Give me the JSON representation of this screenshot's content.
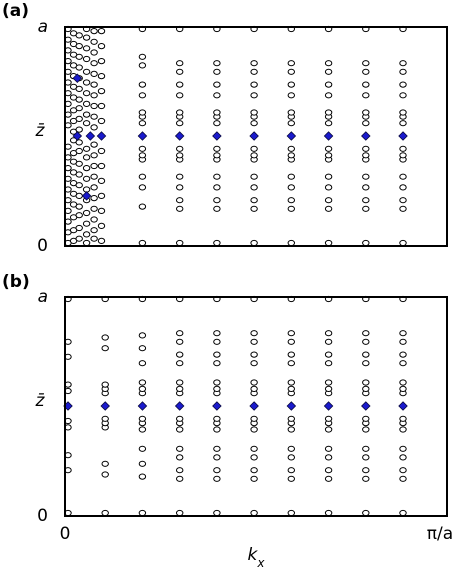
{
  "chart_data": [
    {
      "type": "scatter",
      "panel_label": "(a)",
      "ylabel": "z̄",
      "ylim": [
        0,
        1
      ],
      "xlim": [
        0,
        1
      ],
      "ytick_labels": {
        "bottom": "0",
        "top": "a"
      },
      "ytick_label_side": "left",
      "x_ticklabels": [],
      "open_marker_color": "#ffffff",
      "diamond_color": "#1a1acc",
      "open_columns": [
        {
          "x": 0.0,
          "y": [
            0.0,
            0.05,
            0.1,
            0.15,
            0.2,
            0.25,
            0.3,
            0.35,
            0.4,
            0.45,
            0.55,
            0.6,
            0.65,
            0.7,
            0.75,
            0.8,
            0.85,
            0.9,
            0.95,
            1.0
          ]
        },
        {
          "x": 0.015,
          "y": [
            0.01,
            0.06,
            0.12,
            0.18,
            0.23,
            0.28,
            0.33,
            0.38,
            0.42,
            0.48,
            0.52,
            0.57,
            0.62,
            0.68,
            0.73,
            0.78,
            0.83,
            0.88,
            0.93,
            0.98
          ]
        },
        {
          "x": 0.03,
          "y": [
            0.02,
            0.07,
            0.13,
            0.17,
            0.22,
            0.27,
            0.32,
            0.37,
            0.43,
            0.47,
            0.53,
            0.58,
            0.63,
            0.67,
            0.72,
            0.77,
            0.82,
            0.87,
            0.92,
            0.97
          ]
        },
        {
          "x": 0.05,
          "y": [
            0.0,
            0.04,
            0.09,
            0.14,
            0.2,
            0.25,
            0.3,
            0.35,
            0.4,
            0.44,
            0.56,
            0.6,
            0.65,
            0.7,
            0.75,
            0.8,
            0.86,
            0.91,
            0.96,
            1.0
          ]
        },
        {
          "x": 0.07,
          "y": [
            0.02,
            0.06,
            0.11,
            0.16,
            0.21,
            0.26,
            0.31,
            0.36,
            0.41,
            0.46,
            0.54,
            0.59,
            0.64,
            0.69,
            0.74,
            0.79,
            0.84,
            0.89,
            0.94,
            0.99
          ]
        },
        {
          "x": 0.09,
          "y": [
            0.01,
            0.08,
            0.15,
            0.22,
            0.29,
            0.36,
            0.43,
            0.57,
            0.64,
            0.71,
            0.78,
            0.85,
            0.92,
            0.99
          ]
        },
        {
          "x": 0.2,
          "y": [
            0.0,
            0.17,
            0.26,
            0.31,
            0.39,
            0.41,
            0.44,
            0.56,
            0.59,
            0.61,
            0.69,
            0.74,
            0.83,
            0.87,
            1.0
          ]
        },
        {
          "x": 0.3,
          "y": [
            0.0,
            0.16,
            0.2,
            0.26,
            0.31,
            0.39,
            0.41,
            0.44,
            0.56,
            0.59,
            0.61,
            0.69,
            0.74,
            0.8,
            0.84,
            1.0
          ]
        },
        {
          "x": 0.4,
          "y": [
            0.0,
            0.16,
            0.2,
            0.26,
            0.31,
            0.39,
            0.41,
            0.44,
            0.56,
            0.59,
            0.61,
            0.69,
            0.74,
            0.8,
            0.84,
            1.0
          ]
        },
        {
          "x": 0.5,
          "y": [
            0.0,
            0.16,
            0.2,
            0.26,
            0.31,
            0.39,
            0.41,
            0.44,
            0.56,
            0.59,
            0.61,
            0.69,
            0.74,
            0.8,
            0.84,
            1.0
          ]
        },
        {
          "x": 0.6,
          "y": [
            0.0,
            0.16,
            0.2,
            0.26,
            0.31,
            0.39,
            0.41,
            0.44,
            0.56,
            0.59,
            0.61,
            0.69,
            0.74,
            0.8,
            0.84,
            1.0
          ]
        },
        {
          "x": 0.7,
          "y": [
            0.0,
            0.16,
            0.2,
            0.26,
            0.31,
            0.39,
            0.41,
            0.44,
            0.56,
            0.59,
            0.61,
            0.69,
            0.74,
            0.8,
            0.84,
            1.0
          ]
        },
        {
          "x": 0.8,
          "y": [
            0.0,
            0.16,
            0.2,
            0.26,
            0.31,
            0.39,
            0.41,
            0.44,
            0.56,
            0.59,
            0.61,
            0.69,
            0.74,
            0.8,
            0.84,
            1.0
          ]
        },
        {
          "x": 0.9,
          "y": [
            0.0,
            0.16,
            0.2,
            0.26,
            0.31,
            0.39,
            0.41,
            0.44,
            0.56,
            0.59,
            0.61,
            0.69,
            0.74,
            0.8,
            0.84,
            1.0
          ]
        }
      ],
      "diamonds": [
        {
          "x": 0.025,
          "y": 0.5
        },
        {
          "x": 0.06,
          "y": 0.5
        },
        {
          "x": 0.09,
          "y": 0.5
        },
        {
          "x": 0.2,
          "y": 0.5
        },
        {
          "x": 0.3,
          "y": 0.5
        },
        {
          "x": 0.4,
          "y": 0.5
        },
        {
          "x": 0.5,
          "y": 0.5
        },
        {
          "x": 0.6,
          "y": 0.5
        },
        {
          "x": 0.7,
          "y": 0.5
        },
        {
          "x": 0.8,
          "y": 0.5
        },
        {
          "x": 0.9,
          "y": 0.5
        },
        {
          "x": 0.025,
          "y": 0.77
        },
        {
          "x": 0.05,
          "y": 0.22
        }
      ]
    },
    {
      "type": "scatter",
      "panel_label": "(b)",
      "ylabel": "z̄",
      "xlabel": "kx",
      "ylim": [
        0,
        1
      ],
      "xlim": [
        0,
        1
      ],
      "ytick_labels": {
        "bottom": "0",
        "top": "a"
      },
      "ytick_label_side": "left",
      "x_ticklabels": [
        "0",
        "π/a"
      ],
      "open_marker_color": "#ffffff",
      "diamond_color": "#1a1acc",
      "open_columns": [
        {
          "x": 0.0,
          "y": [
            0.0,
            0.2,
            0.27,
            0.4,
            0.43,
            0.57,
            0.6,
            0.73,
            0.8,
            1.0
          ]
        },
        {
          "x": 0.1,
          "y": [
            0.0,
            0.18,
            0.23,
            0.4,
            0.42,
            0.44,
            0.56,
            0.58,
            0.6,
            0.77,
            0.82,
            1.0
          ]
        },
        {
          "x": 0.2,
          "y": [
            0.0,
            0.17,
            0.23,
            0.3,
            0.39,
            0.42,
            0.44,
            0.56,
            0.58,
            0.61,
            0.7,
            0.77,
            0.83,
            1.0
          ]
        },
        {
          "x": 0.3,
          "y": [
            0.0,
            0.16,
            0.2,
            0.26,
            0.3,
            0.39,
            0.42,
            0.44,
            0.56,
            0.58,
            0.61,
            0.7,
            0.74,
            0.8,
            0.84,
            1.0
          ]
        },
        {
          "x": 0.4,
          "y": [
            0.0,
            0.16,
            0.2,
            0.26,
            0.3,
            0.39,
            0.42,
            0.44,
            0.56,
            0.58,
            0.61,
            0.7,
            0.74,
            0.8,
            0.84,
            1.0
          ]
        },
        {
          "x": 0.5,
          "y": [
            0.0,
            0.16,
            0.2,
            0.26,
            0.3,
            0.39,
            0.42,
            0.44,
            0.56,
            0.58,
            0.61,
            0.7,
            0.74,
            0.8,
            0.84,
            1.0
          ]
        },
        {
          "x": 0.6,
          "y": [
            0.0,
            0.16,
            0.2,
            0.26,
            0.3,
            0.39,
            0.42,
            0.44,
            0.56,
            0.58,
            0.61,
            0.7,
            0.74,
            0.8,
            0.84,
            1.0
          ]
        },
        {
          "x": 0.7,
          "y": [
            0.0,
            0.16,
            0.2,
            0.26,
            0.3,
            0.39,
            0.42,
            0.44,
            0.56,
            0.58,
            0.61,
            0.7,
            0.74,
            0.8,
            0.84,
            1.0
          ]
        },
        {
          "x": 0.8,
          "y": [
            0.0,
            0.16,
            0.2,
            0.26,
            0.3,
            0.39,
            0.42,
            0.44,
            0.56,
            0.58,
            0.61,
            0.7,
            0.74,
            0.8,
            0.84,
            1.0
          ]
        },
        {
          "x": 0.9,
          "y": [
            0.0,
            0.16,
            0.2,
            0.26,
            0.3,
            0.39,
            0.42,
            0.44,
            0.56,
            0.58,
            0.61,
            0.7,
            0.74,
            0.8,
            0.84,
            1.0
          ]
        }
      ],
      "diamonds": [
        {
          "x": 0.0,
          "y": 0.5
        },
        {
          "x": 0.1,
          "y": 0.5
        },
        {
          "x": 0.2,
          "y": 0.5
        },
        {
          "x": 0.3,
          "y": 0.5
        },
        {
          "x": 0.4,
          "y": 0.5
        },
        {
          "x": 0.5,
          "y": 0.5
        },
        {
          "x": 0.6,
          "y": 0.5
        },
        {
          "x": 0.7,
          "y": 0.5
        },
        {
          "x": 0.8,
          "y": 0.5
        },
        {
          "x": 0.9,
          "y": 0.5
        }
      ]
    }
  ]
}
